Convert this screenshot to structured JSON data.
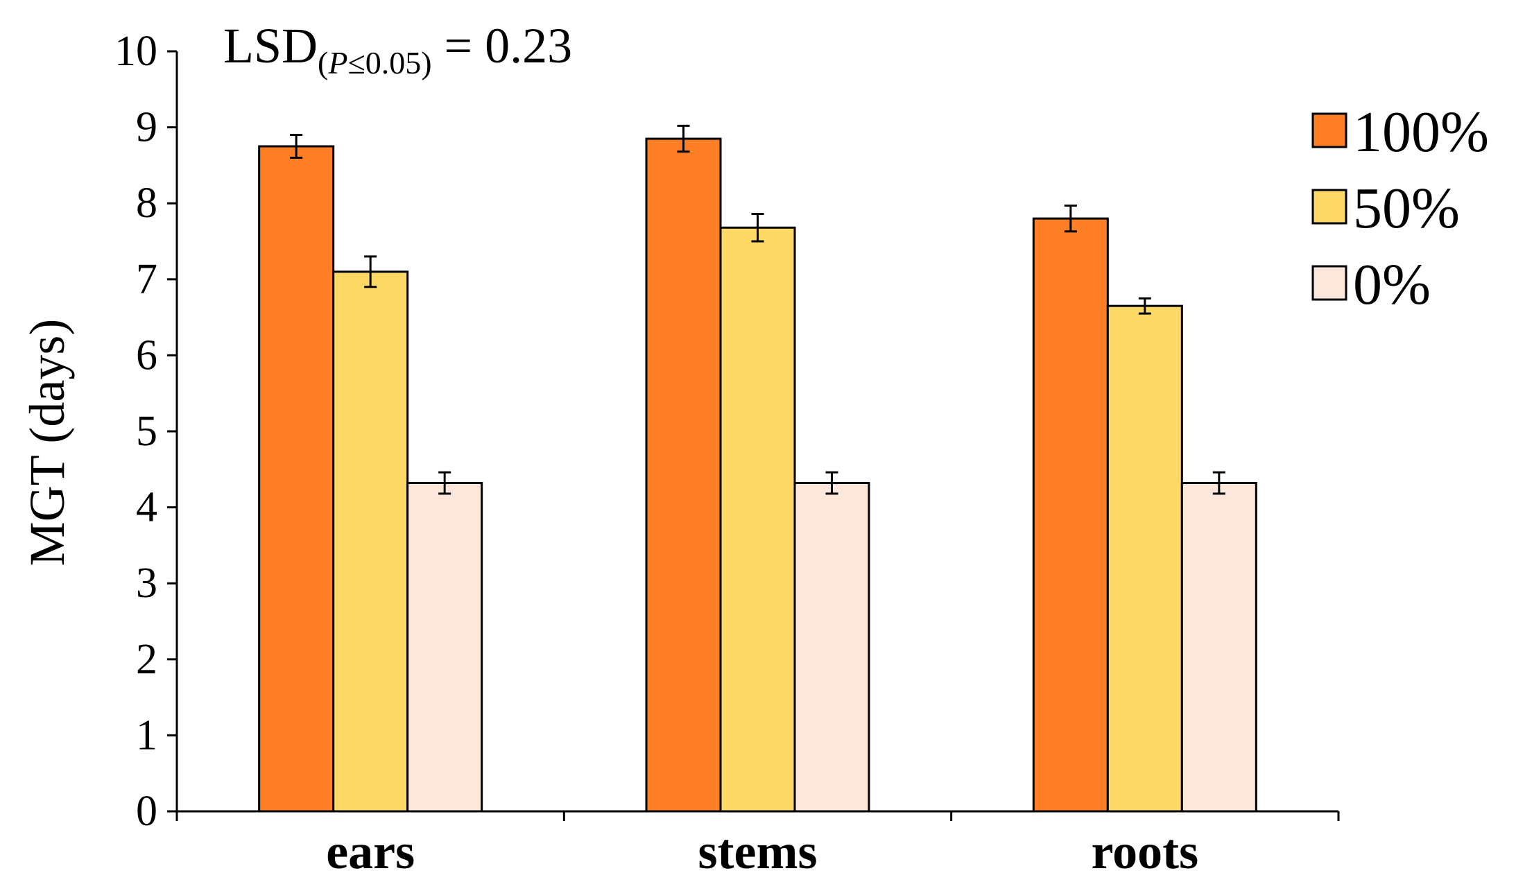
{
  "chart_data": {
    "type": "bar",
    "title": "",
    "xlabel": "",
    "ylabel": "MGT (days)",
    "ylim": [
      0,
      10
    ],
    "yticks": [
      "0",
      "1",
      "2",
      "3",
      "4",
      "5",
      "6",
      "7",
      "8",
      "9",
      "10"
    ],
    "categories": [
      "ears",
      "stems",
      "roots"
    ],
    "series": [
      {
        "name": "100%",
        "color": "#FF7F27",
        "values": [
          8.75,
          8.85,
          7.8
        ],
        "errors": [
          0.15,
          0.17,
          0.17
        ]
      },
      {
        "name": "50%",
        "color": "#FFD966",
        "values": [
          7.1,
          7.68,
          6.65
        ],
        "errors": [
          0.2,
          0.18,
          0.1
        ]
      },
      {
        "name": "0%",
        "color": "#FDE6DA",
        "values": [
          4.32,
          4.32,
          4.32
        ],
        "errors": [
          0.14,
          0.14,
          0.14
        ]
      }
    ],
    "legend_position": "right",
    "annotation": {
      "prefix": "LSD",
      "subscript_open": "(",
      "subscript_var": "P",
      "subscript_rest": "≤0.05)",
      "suffix": " = 0.23"
    }
  }
}
